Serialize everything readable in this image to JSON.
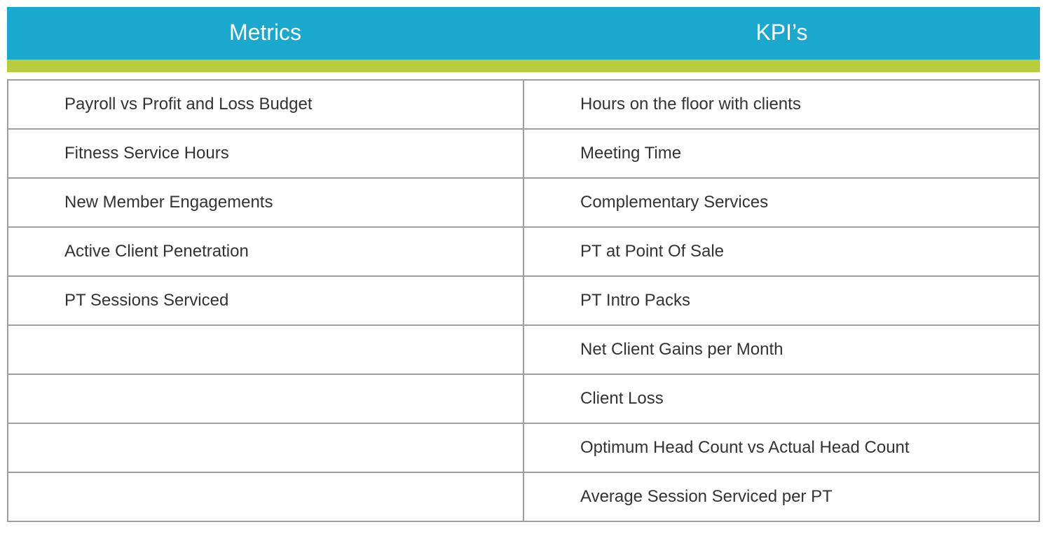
{
  "colors": {
    "header_bg": "#1aa8cf",
    "header_text": "#ffffff",
    "accent_bar": "#b7cd3d",
    "cell_border": "#9e9e9e",
    "cell_text": "#333333",
    "cell_bg": "#ffffff"
  },
  "table": {
    "columns": [
      "Metrics",
      "KPI’s"
    ],
    "rows": [
      [
        "Payroll vs Profit and  Loss Budget",
        "Hours on the floor with clients"
      ],
      [
        "Fitness Service Hours",
        "Meeting Time"
      ],
      [
        "New Member Engagements",
        "Complementary Services"
      ],
      [
        "Active Client Penetration",
        "PT at Point Of Sale"
      ],
      [
        "PT Sessions Serviced",
        "PT Intro Packs"
      ],
      [
        "",
        "Net Client Gains per Month"
      ],
      [
        "",
        "Client Loss"
      ],
      [
        "",
        "Optimum Head Count vs Actual Head Count"
      ],
      [
        "",
        "Average Session Serviced per PT"
      ]
    ]
  }
}
